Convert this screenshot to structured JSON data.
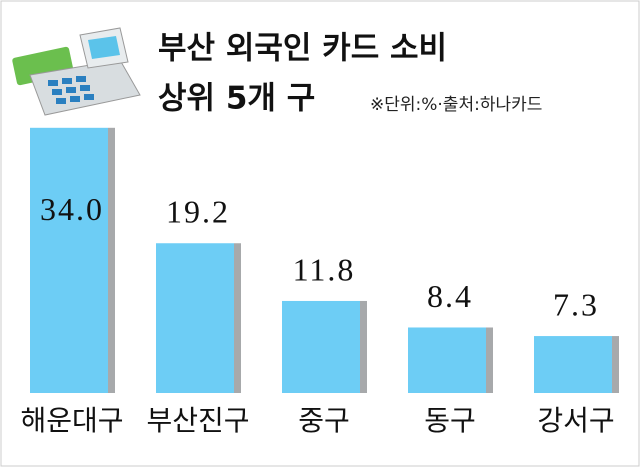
{
  "chart_data": {
    "type": "bar",
    "title": [
      "부산 외국인 카드 소비",
      "상위 5개 구"
    ],
    "note": "※단위:%·출처:하나카드",
    "categories": [
      "해운대구",
      "부산진구",
      "중구",
      "동구",
      "강서구"
    ],
    "values": [
      34.0,
      19.2,
      11.8,
      8.4,
      7.3
    ],
    "value_labels": [
      "34.0",
      "19.2",
      "11.8",
      "8.4",
      "7.3"
    ],
    "color": "#6dcdf5"
  }
}
